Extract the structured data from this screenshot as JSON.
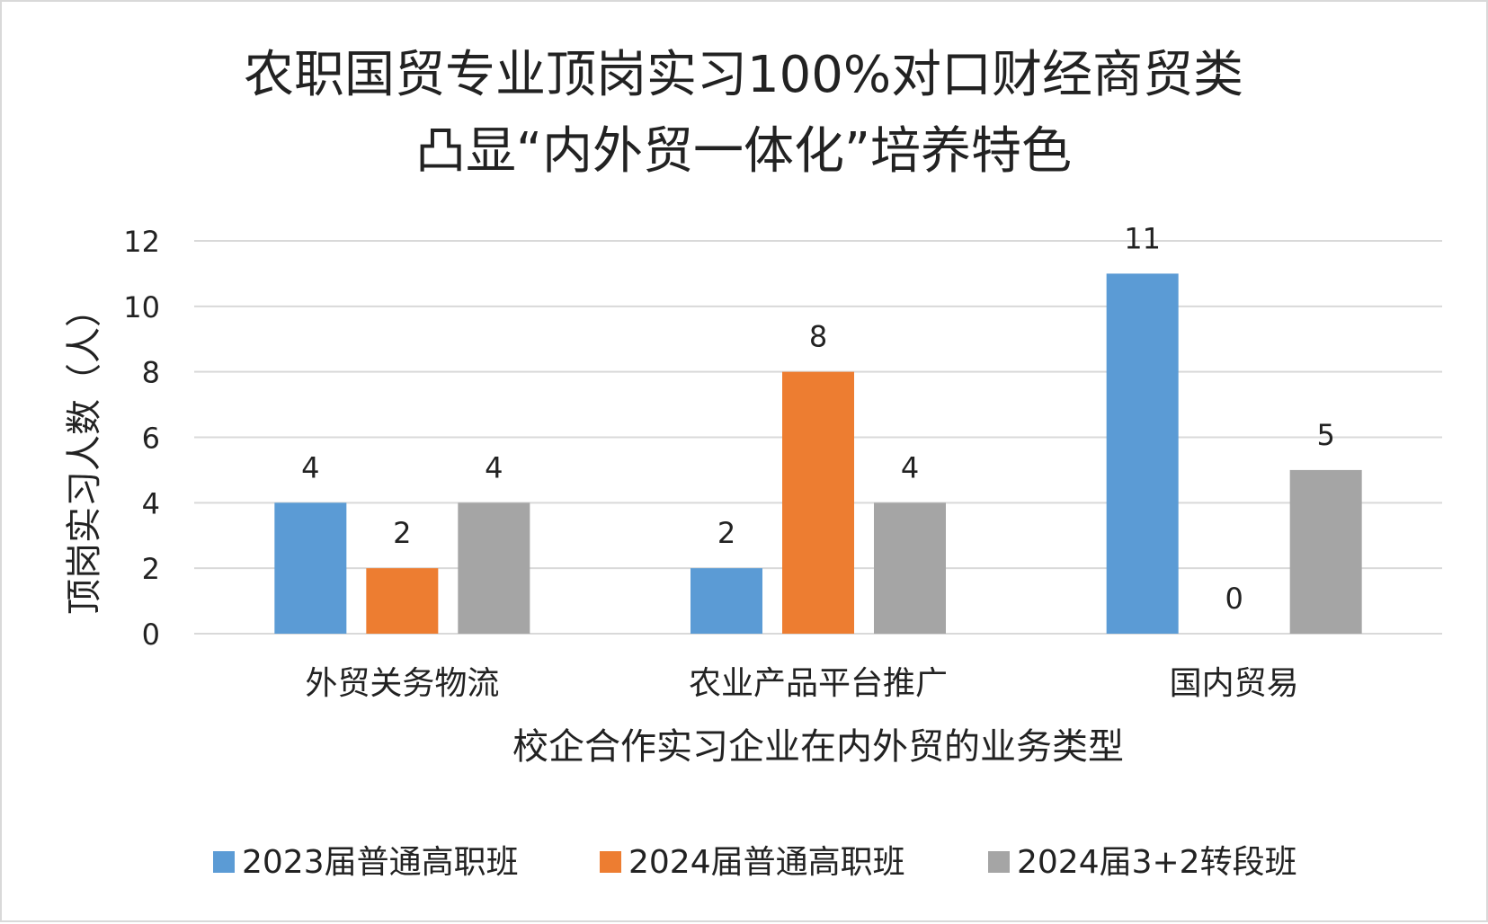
{
  "chart_data": {
    "type": "bar",
    "title": [
      "农职国贸专业顶岗实习100%对口财经商贸类",
      "凸显“内外贸一体化”培养特色"
    ],
    "xlabel": "校企合作实习企业在内外贸的业务类型",
    "ylabel": "顶岗实习人数（人）",
    "categories": [
      "外贸关务物流",
      "农业产品平台推广",
      "国内贸易"
    ],
    "series": [
      {
        "name": "2023届普通高职班",
        "color": "#5b9bd5",
        "values": [
          4,
          2,
          11
        ]
      },
      {
        "name": "2024届普通高职班",
        "color": "#ed7d31",
        "values": [
          2,
          8,
          0
        ]
      },
      {
        "name": "2024届3+2转段班",
        "color": "#a5a5a5",
        "values": [
          4,
          4,
          5
        ]
      }
    ],
    "ylim": [
      0,
      12
    ],
    "yticks": [
      0,
      2,
      4,
      6,
      8,
      10,
      12
    ],
    "grid": true,
    "data_labels": true,
    "legend_position": "bottom"
  }
}
